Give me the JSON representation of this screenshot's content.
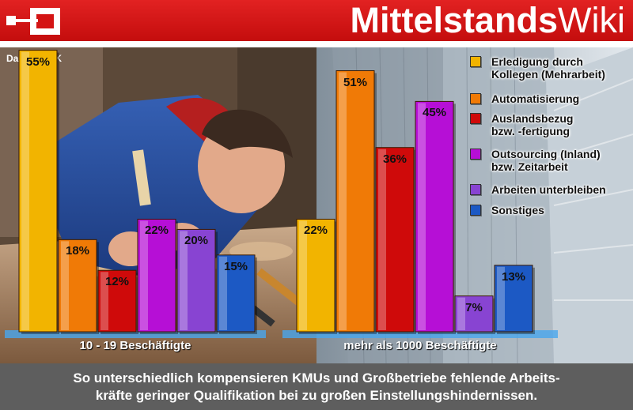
{
  "header": {
    "brand_bold": "Mittelstands",
    "brand_light": "Wiki"
  },
  "source_note": "Daten: DIHK",
  "footer": {
    "caption": "So unterschiedlich kompensieren KMUs und Großbetriebe fehlende Arbeits-\nkräfte geringer Qualifikation bei zu großen Einstellungshindernissen."
  },
  "chart_data": {
    "type": "bar",
    "title": "",
    "categories": [
      "10 - 19 Beschäftigte",
      "mehr als 1000 Beschäftigte"
    ],
    "series": [
      {
        "name": "Erledigung durch\nKollegen (Mehrarbeit)",
        "color": "#f2b400",
        "values": [
          55,
          22
        ],
        "labels": [
          "55%",
          "22%"
        ]
      },
      {
        "name": "Automatisierung",
        "color": "#f07a06",
        "values": [
          18,
          51
        ],
        "labels": [
          "18%",
          "51%"
        ]
      },
      {
        "name": "Auslandsbezug\nbzw. -fertigung",
        "color": "#cf0a0a",
        "values": [
          12,
          36
        ],
        "labels": [
          "12%",
          "36%"
        ]
      },
      {
        "name": "Outsourcing (Inland)\nbzw. Zeitarbeit",
        "color": "#b60fd6",
        "values": [
          22,
          45
        ],
        "labels": [
          "22%",
          "45%"
        ]
      },
      {
        "name": "Arbeiten unterbleiben",
        "color": "#8844d2",
        "values": [
          20,
          7
        ],
        "labels": [
          "20%",
          "7%"
        ]
      },
      {
        "name": "Sonstiges",
        "color": "#1c59c4",
        "values": [
          15,
          13
        ],
        "labels": [
          "15%",
          "13%"
        ]
      }
    ],
    "ylim": [
      0,
      60
    ],
    "grid": false,
    "legend_position": "right"
  }
}
